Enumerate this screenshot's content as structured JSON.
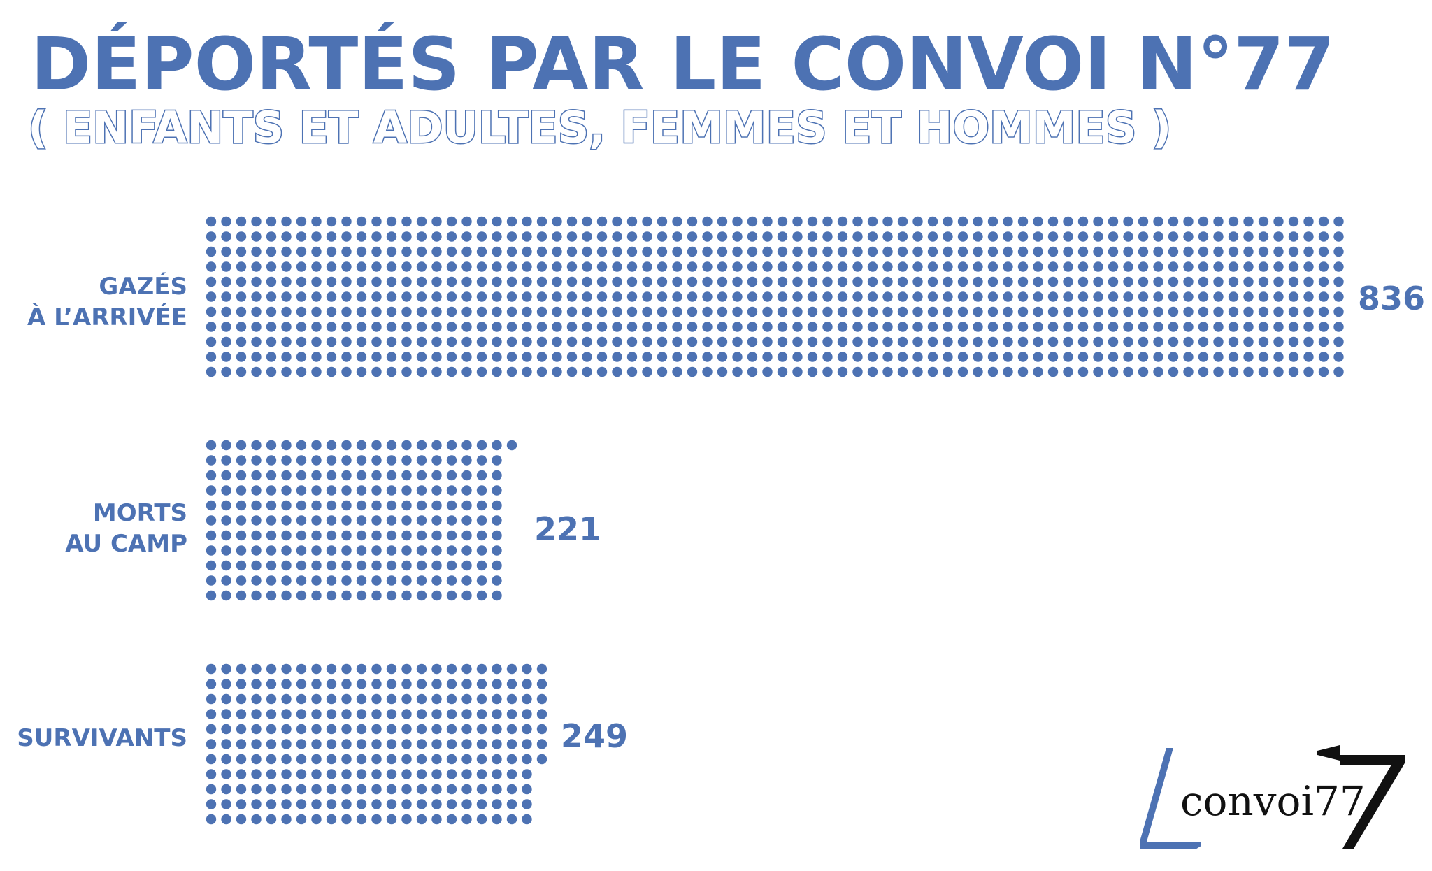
{
  "title": "DÉPORTÉS PAR LE CONVOI N°77",
  "subtitle": "( ENFANTS ET ADULTES, FEMMES ET HOMMES )",
  "colors": {
    "dot": "#4d72b3",
    "text": "#4d72b3",
    "logo_blue": "#4d72b3",
    "logo_black": "#111111"
  },
  "chart_data": {
    "type": "bar",
    "orientation": "horizontal",
    "marks": "dots",
    "title": "DÉPORTÉS PAR LE CONVOI N°77",
    "subtitle": "( ENFANTS ET ADULTES, FEMMES ET HOMMES )",
    "categories": [
      {
        "lines": [
          "GAZÉS",
          "À L’ARRIVÉE"
        ],
        "value": 836,
        "label": "836"
      },
      {
        "lines": [
          "MORTS",
          "AU CAMP"
        ],
        "value": 221,
        "label": "221"
      },
      {
        "lines": [
          "SURVIVANTS"
        ],
        "value": 249,
        "label": "249"
      }
    ],
    "grid": false,
    "legend": "none"
  },
  "logo": {
    "text": "convoi77"
  }
}
